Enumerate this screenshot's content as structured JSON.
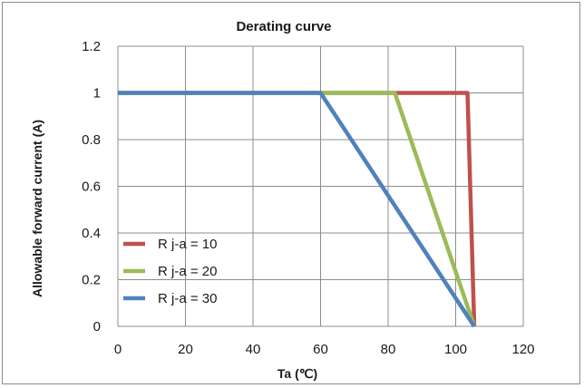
{
  "chart_data": {
    "type": "line",
    "title": "Derating curve",
    "xlabel": "Ta (℃)",
    "ylabel": "Allowable  forward  current  (A)",
    "xlim": [
      0,
      120
    ],
    "ylim": [
      0,
      1.2
    ],
    "x_ticks": [
      "0",
      "20",
      "40",
      "60",
      "80",
      "100",
      "120"
    ],
    "y_ticks": [
      "0",
      "0.2",
      "0.4",
      "0.6",
      "0.8",
      "1",
      "1.2"
    ],
    "grid": true,
    "legend_position": "lower-left",
    "series": [
      {
        "name": "R j-a = 10",
        "color": "#c0504d",
        "x": [
          0,
          103.5,
          105.5
        ],
        "y": [
          1,
          1,
          0
        ]
      },
      {
        "name": "R j-a = 20",
        "color": "#9bbb59",
        "x": [
          0,
          82,
          105.5
        ],
        "y": [
          1,
          1,
          0
        ]
      },
      {
        "name": "R j-a = 30",
        "color": "#4f81bd",
        "x": [
          0,
          60,
          105.5
        ],
        "y": [
          1,
          1,
          0
        ]
      }
    ]
  }
}
